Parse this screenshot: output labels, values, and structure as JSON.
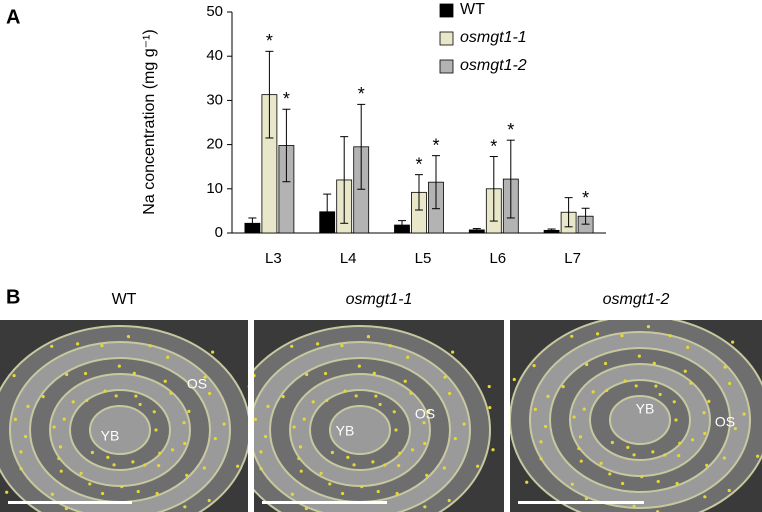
{
  "panel_a": {
    "label": "A"
  },
  "chart_data": {
    "type": "bar",
    "ylabel": "Na concentration (mg g⁻¹)",
    "categories": [
      "L3",
      "L4",
      "L5",
      "L6",
      "L7"
    ],
    "ylim": [
      0,
      50
    ],
    "yticks": [
      0,
      10,
      20,
      30,
      40,
      50
    ],
    "series": [
      {
        "name": "WT",
        "color": "#000000",
        "values": [
          2.2,
          4.8,
          1.8,
          0.7,
          0.6
        ],
        "errors": [
          1.2,
          4.0,
          1.0,
          0.3,
          0.3
        ],
        "significance": [
          null,
          null,
          null,
          null,
          null
        ]
      },
      {
        "name": "osmgt1-1",
        "color": "#e9e7c9",
        "values": [
          31.3,
          12.0,
          9.2,
          10.0,
          4.7
        ],
        "errors": [
          9.8,
          9.8,
          4.0,
          7.3,
          3.3
        ],
        "significance": [
          "*",
          null,
          "*",
          "*",
          null
        ]
      },
      {
        "name": "osmgt1-2",
        "color": "#b3b3b3",
        "values": [
          19.8,
          19.5,
          11.5,
          12.2,
          3.8
        ],
        "errors": [
          8.2,
          9.6,
          6.0,
          8.8,
          1.8
        ],
        "significance": [
          "*",
          "*",
          "*",
          "*",
          "*"
        ]
      }
    ]
  },
  "panel_b": {
    "label": "B",
    "images": [
      {
        "title": "WT",
        "labels": [
          "OS",
          "YB"
        ]
      },
      {
        "title": "osmgt1-1",
        "labels": [
          "YB",
          "OS"
        ]
      },
      {
        "title": "osmgt1-2",
        "labels": [
          "YB",
          "OS"
        ]
      }
    ]
  }
}
